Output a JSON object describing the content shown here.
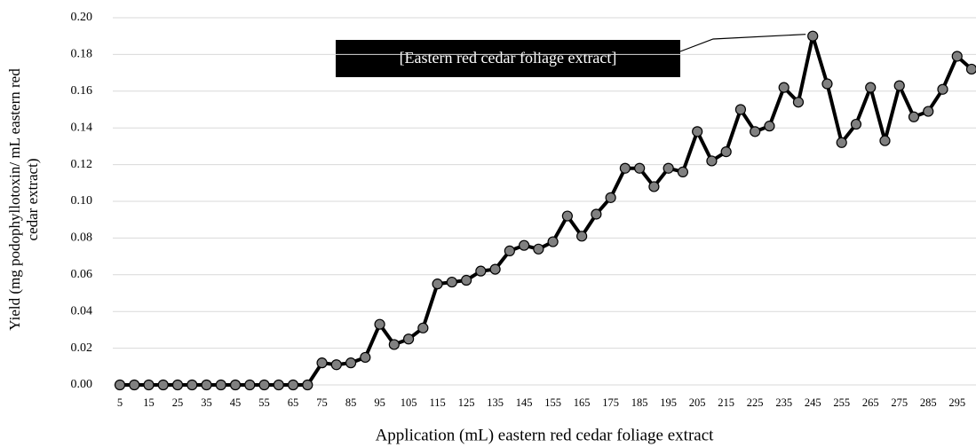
{
  "chart_data": {
    "type": "line",
    "annotation": "[Eastern red cedar foliage extract]",
    "xlabel": "Application (mL) eastern red cedar foliage extract",
    "ylabel": [
      "Yield (mg podophyllotoxin/ mL eastern red",
      "cedar extract)"
    ],
    "categories": [
      5,
      null,
      15,
      null,
      25,
      null,
      35,
      null,
      45,
      null,
      55,
      null,
      65,
      null,
      75,
      null,
      85,
      null,
      95,
      null,
      105,
      null,
      115,
      null,
      125,
      null,
      135,
      null,
      145,
      null,
      155,
      null,
      165,
      null,
      175,
      null,
      185,
      null,
      195,
      null,
      205,
      null,
      215,
      null,
      225,
      null,
      235,
      null,
      245,
      null,
      255,
      null,
      265,
      null,
      275,
      null,
      285,
      null,
      295,
      null
    ],
    "series": [
      {
        "color": "#000000",
        "marker_color": "#808080",
        "values": [
          0,
          0,
          0,
          0,
          0,
          0,
          0,
          0,
          0,
          0,
          0,
          0,
          0,
          0,
          0.012,
          0.011,
          0.012,
          0.015,
          0.033,
          0.022,
          0.025,
          0.031,
          0.055,
          0.056,
          0.057,
          0.062,
          0.063,
          0.073,
          0.076,
          0.074,
          0.078,
          0.092,
          0.081,
          0.093,
          0.102,
          0.118,
          0.118,
          0.108,
          0.118,
          0.116,
          0.138,
          0.122,
          0.127,
          0.15,
          0.138,
          0.141,
          0.162,
          0.154,
          0.19,
          0.164,
          0.132,
          0.142,
          0.162,
          0.133,
          0.163,
          0.146,
          0.149,
          0.161,
          0.179,
          0.172
        ]
      }
    ],
    "ylim": [
      0,
      0.2
    ],
    "yticks": [
      {
        "value": 0,
        "label": "0.00"
      },
      {
        "value": 0.02,
        "label": "0.02"
      },
      {
        "value": 0.04,
        "label": "0.04"
      },
      {
        "value": 0.06,
        "label": "0.06"
      },
      {
        "value": 0.08,
        "label": "0.08"
      },
      {
        "value": 0.1,
        "label": "0.10"
      },
      {
        "value": 0.12,
        "label": "0.12"
      },
      {
        "value": 0.14,
        "label": "0.14"
      },
      {
        "value": 0.16,
        "label": "0.16"
      },
      {
        "value": 0.18,
        "label": "0.18"
      },
      {
        "value": 0.2,
        "label": "0.20"
      }
    ],
    "grid": true,
    "annotation_index": 48
  }
}
